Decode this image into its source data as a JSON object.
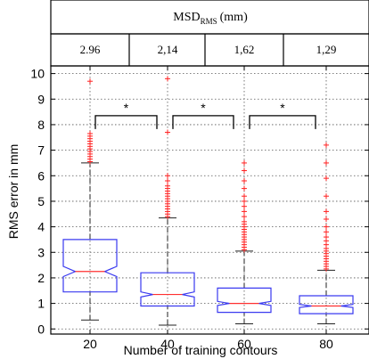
{
  "chart_data": {
    "type": "box",
    "header": {
      "title_main": "MSD",
      "title_sub": "RMS",
      "title_unit": "(mm)",
      "values": [
        "2.96",
        "2,14",
        "1,62",
        "1,29"
      ]
    },
    "xlabel": "Number of training contours",
    "ylabel": "RMS error in mm",
    "ylim": [
      -0.2,
      10.3
    ],
    "yticks": [
      0,
      1,
      2,
      3,
      4,
      5,
      6,
      7,
      8,
      9,
      10
    ],
    "grid": true,
    "categories": [
      "20",
      "40",
      "60",
      "80"
    ],
    "boxes": [
      {
        "category": "20",
        "whisker_low": 0.35,
        "q1": 1.45,
        "median": 2.25,
        "q3": 3.5,
        "whisker_high": 6.5,
        "notch_low": 2.05,
        "notch_high": 2.45,
        "outliers": [
          6.55,
          6.65,
          6.75,
          6.85,
          6.95,
          7.05,
          7.15,
          7.25,
          7.35,
          7.45,
          7.55,
          7.65,
          9.7
        ]
      },
      {
        "category": "40",
        "whisker_low": 0.15,
        "q1": 0.9,
        "median": 1.35,
        "q3": 2.2,
        "whisker_high": 4.35,
        "notch_low": 1.25,
        "notch_high": 1.45,
        "outliers": [
          4.4,
          4.5,
          4.6,
          4.7,
          4.8,
          4.9,
          5.0,
          5.1,
          5.2,
          5.3,
          5.4,
          5.5,
          5.6,
          5.8,
          6.0,
          7.7,
          9.8
        ]
      },
      {
        "category": "60",
        "whisker_low": 0.2,
        "q1": 0.65,
        "median": 1.0,
        "q3": 1.6,
        "whisker_high": 3.05,
        "notch_low": 0.92,
        "notch_high": 1.08,
        "outliers": [
          3.1,
          3.2,
          3.3,
          3.4,
          3.5,
          3.6,
          3.7,
          3.8,
          3.9,
          4.0,
          4.1,
          4.2,
          4.4,
          4.6,
          4.8,
          5.0,
          5.2,
          5.5,
          5.8,
          6.2,
          6.5
        ]
      },
      {
        "category": "80",
        "whisker_low": 0.2,
        "q1": 0.6,
        "median": 0.9,
        "q3": 1.3,
        "whisker_high": 2.3,
        "notch_low": 0.84,
        "notch_high": 0.96,
        "outliers": [
          2.35,
          2.45,
          2.55,
          2.65,
          2.75,
          2.85,
          2.95,
          3.05,
          3.15,
          3.3,
          3.45,
          3.6,
          3.8,
          4.0,
          4.3,
          4.6,
          5.2,
          5.9,
          6.5,
          7.2
        ]
      }
    ],
    "significance": [
      {
        "from": "20",
        "to": "40",
        "y": 8.35,
        "label": "*"
      },
      {
        "from": "40",
        "to": "60",
        "y": 8.35,
        "label": "*"
      },
      {
        "from": "60",
        "to": "80",
        "y": 8.35,
        "label": "*"
      }
    ],
    "colors": {
      "box": "#3a3af0",
      "median": "#ff3030",
      "outlier": "#ff2020",
      "whisker": "#222222",
      "grid": "#555555",
      "axis": "#000000"
    }
  }
}
